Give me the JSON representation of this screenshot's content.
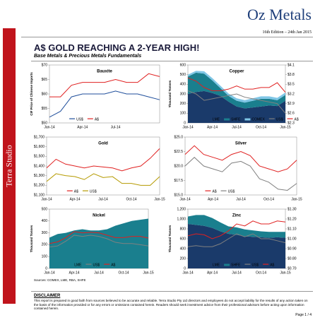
{
  "header": {
    "title": "Oz Metals",
    "edition": "16th Edition – 24th Jan 2015"
  },
  "sidebar": "Terra Studio",
  "headline": "A$ GOLD REACHING A 2-YEAR HIGH!",
  "subheadline": "Base Metals & Precious Metals Fundamentals",
  "chart_data": [
    {
      "type": "line",
      "title": "Bauxite",
      "y_title": "CIF Price of Chinese Imports",
      "categories": [
        "Jan-14",
        null,
        null,
        "Apr-14",
        null,
        null,
        "Jul-14",
        null,
        null,
        null,
        null
      ],
      "ylim": [
        50,
        70
      ],
      "yticks": [
        {
          "value": 50,
          "label": "$50"
        },
        {
          "value": 55,
          "label": "$55"
        },
        {
          "value": 60,
          "label": "$60"
        },
        {
          "value": 65,
          "label": "$65"
        },
        {
          "value": 70,
          "label": "$70"
        }
      ],
      "series": [
        {
          "name": "US$",
          "color": "#1f4e9b",
          "kind": "line",
          "values": [
            52,
            54,
            59,
            60,
            60,
            60,
            61,
            60,
            60,
            59,
            58
          ]
        },
        {
          "name": "A$",
          "color": "#e02020",
          "kind": "line",
          "values": [
            59,
            59,
            63,
            64,
            64,
            64,
            65,
            64,
            64,
            67,
            66
          ]
        }
      ]
    },
    {
      "type": "combo",
      "title": "Copper",
      "y_title": "Thousand Tonnes",
      "categories": [
        "Jan-14",
        null,
        null,
        "Apr-14",
        null,
        null,
        "Jul-14",
        null,
        null,
        "Oct-14",
        null,
        null,
        "Jan-15"
      ],
      "ylim": [
        0,
        600
      ],
      "yticks": [
        0,
        100,
        200,
        300,
        400,
        500,
        600
      ],
      "y2lim": [
        2.3,
        4.1
      ],
      "y2ticks": [
        {
          "value": 2.3,
          "label": "$2.3"
        },
        {
          "value": 2.6,
          "label": "$2.6"
        },
        {
          "value": 2.9,
          "label": "$2.9"
        },
        {
          "value": 3.2,
          "label": "$3.2"
        },
        {
          "value": 3.5,
          "label": "$3.5"
        },
        {
          "value": 3.8,
          "label": "$3.8"
        },
        {
          "value": 4.1,
          "label": "$4.1"
        }
      ],
      "series": [
        {
          "name": "LME",
          "color": "#1a3a6a",
          "kind": "area",
          "values": [
            300,
            320,
            330,
            310,
            280,
            220,
            170,
            150,
            160,
            170,
            180,
            175,
            230
          ]
        },
        {
          "name": "SHFE",
          "color": "#1a7f8e",
          "kind": "area",
          "values": [
            180,
            200,
            180,
            130,
            80,
            60,
            60,
            60,
            70,
            80,
            70,
            60,
            60
          ]
        },
        {
          "name": "COMEX",
          "color": "#7fc6e6",
          "kind": "area",
          "values": [
            20,
            20,
            25,
            25,
            25,
            25,
            25,
            25,
            25,
            25,
            25,
            25,
            25
          ]
        },
        {
          "name": "US$",
          "color": "#808080",
          "kind": "line",
          "axis": "y2",
          "values": [
            3.3,
            3.2,
            3.0,
            3.05,
            3.1,
            3.15,
            3.2,
            3.1,
            3.05,
            3.0,
            2.95,
            2.9,
            2.6
          ]
        },
        {
          "name": "A$",
          "color": "#e02020",
          "kind": "line",
          "axis": "y2",
          "values": [
            3.7,
            3.6,
            3.4,
            3.3,
            3.3,
            3.35,
            3.45,
            3.35,
            3.35,
            3.4,
            3.4,
            3.55,
            3.25
          ]
        }
      ]
    },
    {
      "type": "line",
      "title": "Gold",
      "categories": [
        "Jan-14",
        null,
        null,
        "Apr-14",
        null,
        null,
        "Jul-14",
        null,
        null,
        "Oct-14",
        null,
        null,
        "Jan-15"
      ],
      "ylim": [
        1100,
        1700
      ],
      "yticks": [
        {
          "value": 1100,
          "label": "$1,100"
        },
        {
          "value": 1200,
          "label": "$1,200"
        },
        {
          "value": 1300,
          "label": "$1,300"
        },
        {
          "value": 1400,
          "label": "$1,400"
        },
        {
          "value": 1500,
          "label": "$1,500"
        },
        {
          "value": 1600,
          "label": "$1,600"
        },
        {
          "value": 1700,
          "label": "$1,700"
        }
      ],
      "series": [
        {
          "name": "A$",
          "color": "#e02020",
          "kind": "line",
          "values": [
            1380,
            1470,
            1420,
            1400,
            1380,
            1400,
            1390,
            1380,
            1350,
            1380,
            1400,
            1480,
            1580
          ]
        },
        {
          "name": "US$",
          "color": "#b59a00",
          "kind": "line",
          "values": [
            1240,
            1320,
            1300,
            1290,
            1260,
            1320,
            1280,
            1290,
            1220,
            1220,
            1200,
            1200,
            1290
          ]
        }
      ]
    },
    {
      "type": "line",
      "title": "Silver",
      "categories": [
        "Jan-14",
        null,
        null,
        "Apr-14",
        null,
        null,
        "Jul-14",
        null,
        null,
        "Oct-14",
        null,
        null,
        "Jan-15"
      ],
      "ylim": [
        15,
        25
      ],
      "yticks": [
        {
          "value": 15,
          "label": "$15.0"
        },
        {
          "value": 17.5,
          "label": "$17.5"
        },
        {
          "value": 20,
          "label": "$20.0"
        },
        {
          "value": 22.5,
          "label": "$22.5"
        },
        {
          "value": 25,
          "label": "$25.0"
        }
      ],
      "series": [
        {
          "name": "A$",
          "color": "#e02020",
          "kind": "line",
          "values": [
            22.0,
            23.5,
            22.0,
            21.5,
            21.0,
            22.0,
            22.5,
            21.8,
            20.0,
            19.5,
            19.0,
            19.5,
            21.0
          ]
        },
        {
          "name": "US$",
          "color": "#808080",
          "kind": "line",
          "values": [
            20.0,
            21.5,
            20.0,
            19.5,
            19.0,
            20.5,
            20.8,
            20.0,
            17.8,
            17.2,
            16.0,
            15.8,
            17.0
          ]
        }
      ]
    },
    {
      "type": "combo",
      "title": "Nickel",
      "y_title": "Thousand Tonnes",
      "categories": [
        "Jan-14",
        null,
        null,
        "Apr-14",
        null,
        null,
        "Jul-14",
        null,
        null,
        "Oct-14",
        null,
        null,
        "Jan-15"
      ],
      "ylim": [
        0,
        500
      ],
      "yticks": [
        0,
        100,
        200,
        300,
        400,
        500
      ],
      "y2lim": [
        5000,
        30000
      ],
      "series": [
        {
          "name": "LME",
          "color": "#1a7f8e",
          "kind": "area",
          "values": [
            260,
            290,
            300,
            320,
            330,
            320,
            320,
            330,
            360,
            380,
            400,
            410,
            420
          ]
        },
        {
          "name": "US$",
          "color": "#808080",
          "kind": "line",
          "axis": "y2",
          "values": [
            14000,
            14500,
            16500,
            19000,
            18500,
            19000,
            18500,
            17500,
            16000,
            15500,
            15500,
            15000,
            14500
          ]
        },
        {
          "name": "A$",
          "color": "#e02020",
          "kind": "line",
          "axis": "y2",
          "values": [
            15500,
            16200,
            18000,
            20500,
            20000,
            20200,
            20000,
            19000,
            18000,
            18000,
            18500,
            18500,
            17800
          ]
        }
      ]
    },
    {
      "type": "combo",
      "title": "Zinc",
      "y_title": "Thousand Tonnes",
      "categories": [
        "Jan-14",
        null,
        null,
        "Apr-14",
        null,
        null,
        "Jul-14",
        null,
        null,
        "Oct-14",
        null,
        null,
        "Jan-15"
      ],
      "ylim": [
        0,
        1200
      ],
      "yticks": [
        0,
        200,
        400,
        600,
        800,
        {
          "value": 1000,
          "label": "1,000"
        },
        {
          "value": 1200,
          "label": "1,200"
        }
      ],
      "y2lim": [
        0.7,
        1.3
      ],
      "y2ticks": [
        {
          "value": 0.7,
          "label": "$0.70"
        },
        {
          "value": 0.8,
          "label": "$0.80"
        },
        {
          "value": 0.9,
          "label": "$0.90"
        },
        {
          "value": 1.0,
          "label": "$1.00"
        },
        {
          "value": 1.1,
          "label": "$1.10"
        },
        {
          "value": 1.2,
          "label": "$1.20"
        },
        {
          "value": 1.3,
          "label": "$1.30"
        }
      ],
      "series": [
        {
          "name": "LME",
          "color": "#1a3a6a",
          "kind": "area",
          "values": [
            900,
            880,
            860,
            820,
            750,
            700,
            680,
            650,
            640,
            630,
            620,
            630,
            620
          ]
        },
        {
          "name": "SHFE",
          "color": "#1a7f8e",
          "kind": "area",
          "values": [
            150,
            200,
            220,
            200,
            180,
            150,
            150,
            140,
            130,
            120,
            120,
            110,
            120
          ]
        },
        {
          "name": "US$",
          "color": "#808080",
          "kind": "line",
          "axis": "y2",
          "values": [
            0.92,
            0.93,
            0.92,
            0.92,
            0.95,
            1.0,
            1.05,
            1.02,
            1.05,
            1.0,
            1.0,
            0.98,
            0.96
          ]
        },
        {
          "name": "A$",
          "color": "#e02020",
          "kind": "line",
          "axis": "y2",
          "values": [
            1.03,
            1.05,
            1.04,
            1.0,
            1.03,
            1.08,
            1.15,
            1.13,
            1.18,
            1.15,
            1.15,
            1.18,
            1.17
          ]
        }
      ]
    }
  ],
  "sources": "Sources: COMEX, LME, RBA, SHFE",
  "disclaimer": {
    "title": "DISCLAIMER",
    "text": "This report is prepared in good faith from sources believed to be accurate and reliable. Terra Studio Pty Ltd directors and employees do not accept liability for the results of any action taken on the basis of the information provided or for any errors or omissions contained herein. Readers should seek investment advice from their professional advisors before acting upon information contained herein."
  },
  "page": "Page 1 / 4"
}
